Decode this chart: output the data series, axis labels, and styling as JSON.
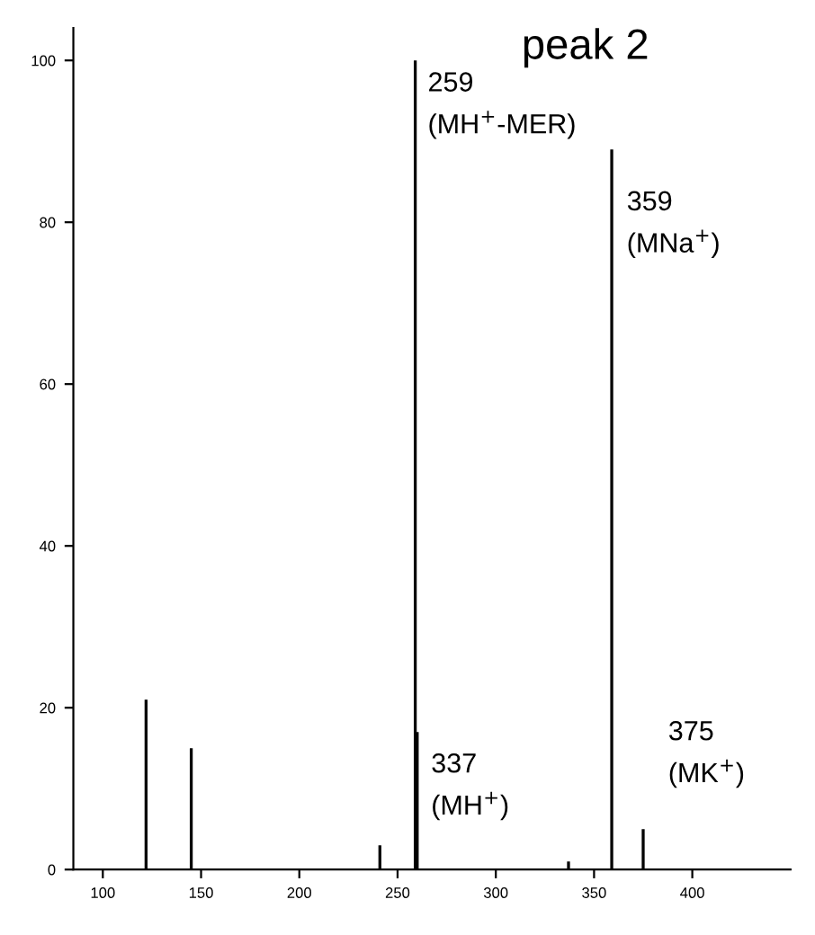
{
  "chart_data": {
    "type": "bar",
    "title": "peak 2",
    "x": [
      122,
      145,
      241,
      259,
      260,
      337,
      359,
      375
    ],
    "values": [
      21,
      15,
      3,
      100,
      17,
      1,
      89,
      5
    ],
    "color": "#000000",
    "xlim": [
      85,
      450
    ],
    "ylim": [
      0,
      104
    ],
    "xticks": [
      100,
      150,
      200,
      250,
      300,
      350,
      400
    ],
    "yticks": [
      0,
      20,
      40,
      60,
      80,
      100
    ],
    "grid": false,
    "annotations": [
      {
        "text": "259\n(MH$^{+}$-MER)",
        "x": 259,
        "y": 100
      },
      {
        "text": "359\n(MNa$^{+}$)",
        "x": 359,
        "y": 89
      },
      {
        "text": "337\n(MH$^{+}$)",
        "x": 337,
        "y": 1
      },
      {
        "text": "375\n(MK$^{+}$)",
        "x": 375,
        "y": 5
      }
    ]
  }
}
